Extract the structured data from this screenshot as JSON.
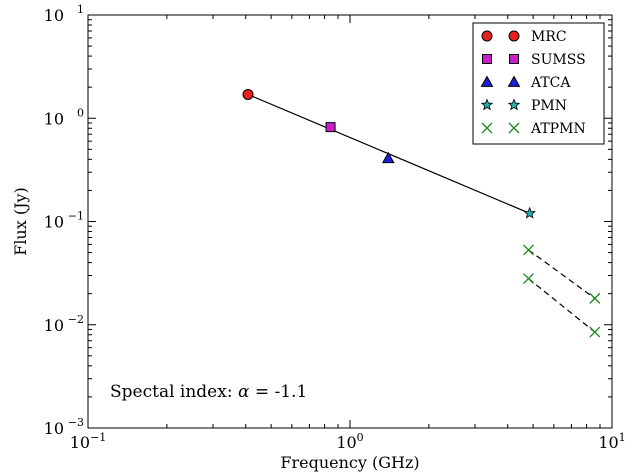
{
  "chart_data": {
    "type": "scatter",
    "title": "",
    "xlabel": "Frequency (GHz)",
    "ylabel": "Flux (Jy)",
    "xscale": "log",
    "yscale": "log",
    "xlim": [
      0.1,
      10
    ],
    "ylim": [
      0.001,
      10
    ],
    "grid": false,
    "legend_position": "top-right",
    "x_ticks": [
      {
        "value": 0.1,
        "base": "10",
        "exp": "−1"
      },
      {
        "value": 1,
        "base": "10",
        "exp": "0"
      },
      {
        "value": 10,
        "base": "10",
        "exp": "1"
      }
    ],
    "y_ticks": [
      {
        "value": 0.001,
        "base": "10",
        "exp": "−3"
      },
      {
        "value": 0.01,
        "base": "10",
        "exp": "−2"
      },
      {
        "value": 0.1,
        "base": "10",
        "exp": "−1"
      },
      {
        "value": 1,
        "base": "10",
        "exp": "0"
      },
      {
        "value": 10,
        "base": "10",
        "exp": "1"
      }
    ],
    "series": [
      {
        "name": "MRC",
        "marker": "circle",
        "color": "#e8211f",
        "points": [
          [
            0.408,
            1.7
          ]
        ]
      },
      {
        "name": "SUMSS",
        "marker": "square",
        "color": "#c81fc8",
        "points": [
          [
            0.843,
            0.82
          ]
        ]
      },
      {
        "name": "ATCA",
        "marker": "triangle",
        "color": "#1f1fe0",
        "points": [
          [
            1.4,
            0.41
          ]
        ]
      },
      {
        "name": "PMN",
        "marker": "star",
        "color": "#22b0b0",
        "points": [
          [
            4.85,
            0.12
          ]
        ]
      },
      {
        "name": "ATPMN",
        "marker": "x",
        "color": "#1a8a1a",
        "points": [
          [
            4.8,
            0.053
          ],
          [
            4.8,
            0.028
          ],
          [
            8.6,
            0.018
          ],
          [
            8.6,
            0.0085
          ]
        ]
      }
    ],
    "fit_line": {
      "style": "solid",
      "color": "#000000",
      "points": [
        [
          0.408,
          1.7
        ],
        [
          4.85,
          0.12
        ]
      ]
    },
    "dashed_lines": [
      {
        "points": [
          [
            4.8,
            0.053
          ],
          [
            8.6,
            0.018
          ]
        ]
      },
      {
        "points": [
          [
            4.8,
            0.028
          ],
          [
            8.6,
            0.0085
          ]
        ]
      }
    ],
    "annotation": {
      "prefix": "Spectal index: ",
      "symbol": "α",
      "suffix": " = -1.1"
    }
  }
}
